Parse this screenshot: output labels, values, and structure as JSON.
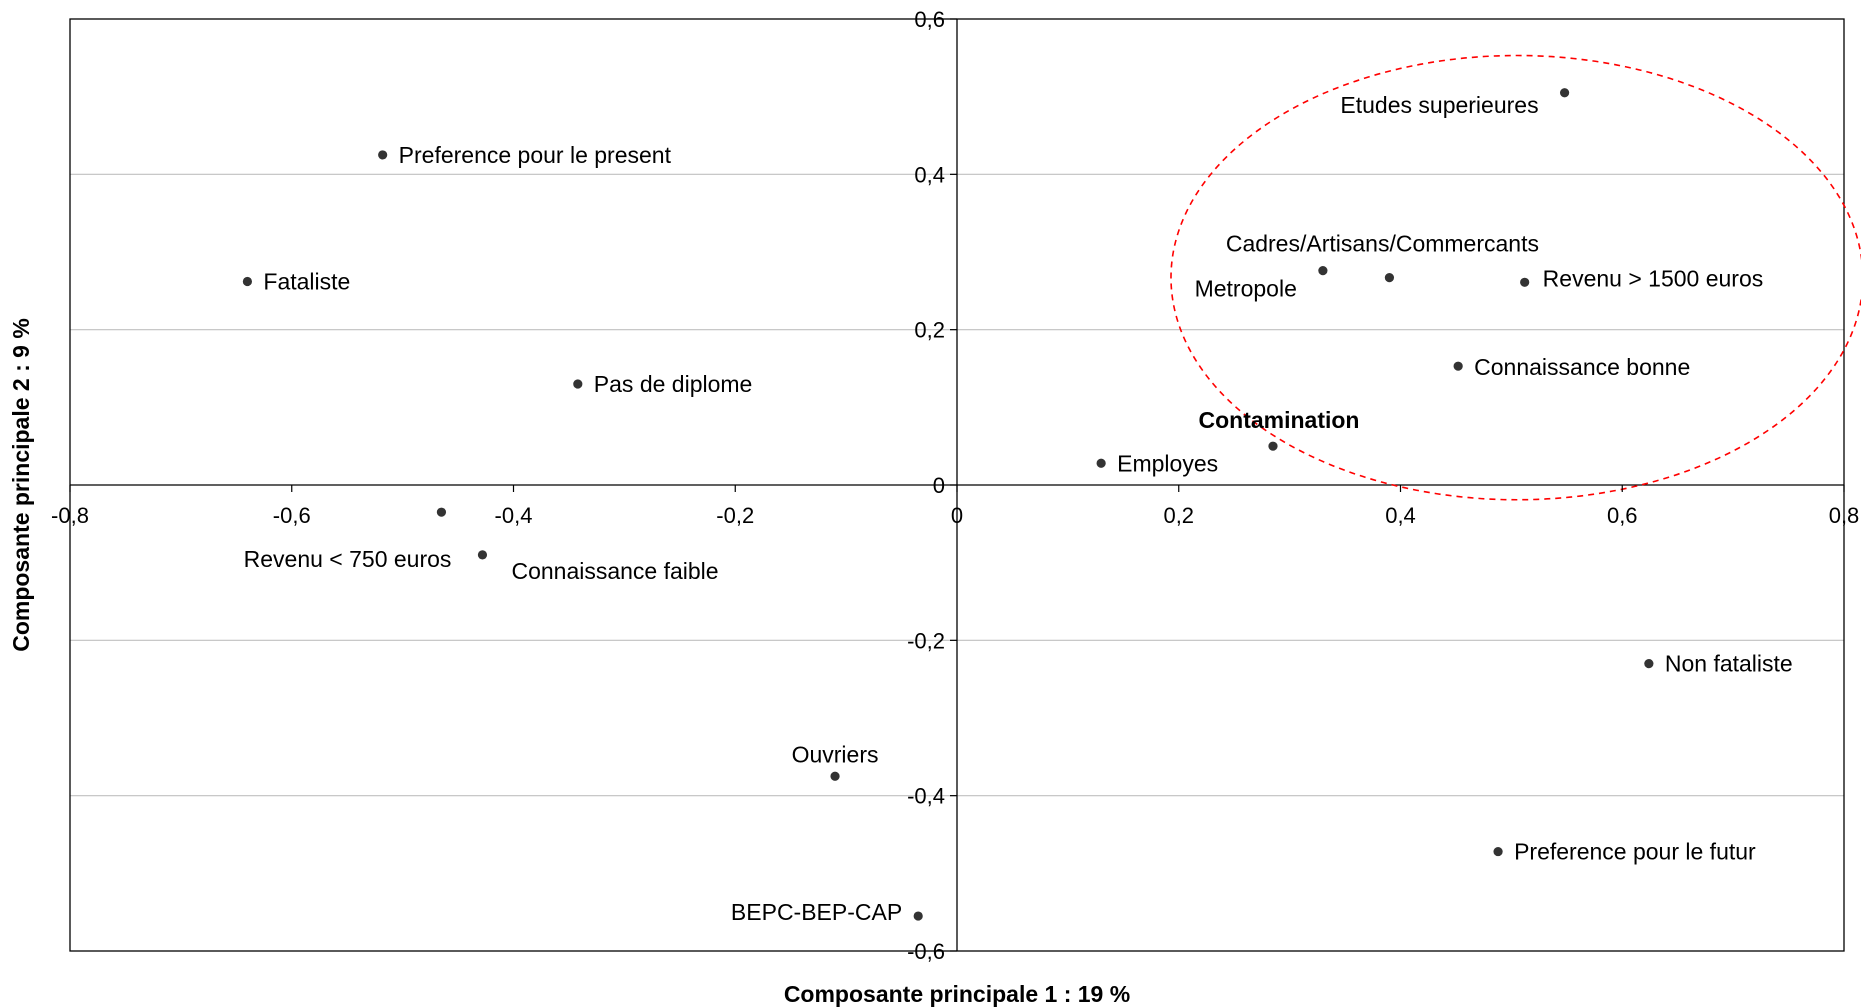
{
  "chart_data": {
    "type": "scatter",
    "xlabel": "Composante principale 1 : 19 %",
    "ylabel": "Composante principale 2 : 9 %",
    "xlim": [
      -0.8,
      0.8
    ],
    "ylim": [
      -0.6,
      0.6
    ],
    "x_ticks": [
      -0.8,
      -0.6,
      -0.4,
      -0.2,
      0,
      0.2,
      0.4,
      0.6,
      0.8
    ],
    "y_ticks": [
      -0.6,
      -0.4,
      -0.2,
      0,
      0.2,
      0.4,
      0.6
    ],
    "x_tick_labels": [
      "-0,8",
      "-0,6",
      "-0,4",
      "-0,2",
      "0",
      "0,2",
      "0,4",
      "0,6",
      "0,8"
    ],
    "y_tick_labels": [
      "-0,6",
      "-0,4",
      "-0,2",
      "0",
      "0,2",
      "0,4",
      "0,6"
    ],
    "grid": "horizontal",
    "colors": {
      "points": "#333333",
      "grid": "#c0c0c0",
      "axis": "#000000",
      "ellipse": "#ff0000"
    },
    "points": [
      {
        "label": "Preference pour le present",
        "x": -0.518,
        "y": 0.425
      },
      {
        "label": "Fataliste",
        "x": -0.64,
        "y": 0.262
      },
      {
        "label": "Pas de diplome",
        "x": -0.342,
        "y": 0.13
      },
      {
        "label": "Revenu < 750 euros",
        "x": -0.465,
        "y": -0.035
      },
      {
        "label": "Connaissance faible",
        "x": -0.428,
        "y": -0.09
      },
      {
        "label": "Ouvriers",
        "x": -0.11,
        "y": -0.375
      },
      {
        "label": "BEPC-BEP-CAP",
        "x": -0.035,
        "y": -0.555
      },
      {
        "label": "Etudes superieures",
        "x": 0.548,
        "y": 0.505
      },
      {
        "label": "Cadres/Artisans/Commercants",
        "x": 0.39,
        "y": 0.267
      },
      {
        "label": "Metropole",
        "x": 0.33,
        "y": 0.276
      },
      {
        "label": "Revenu > 1500 euros",
        "x": 0.512,
        "y": 0.261
      },
      {
        "label": "Connaissance bonne",
        "x": 0.452,
        "y": 0.153
      },
      {
        "label": "Contamination",
        "x": 0.285,
        "y": 0.05,
        "bold": true
      },
      {
        "label": "Employes",
        "x": 0.13,
        "y": 0.028
      },
      {
        "label": "Non fataliste",
        "x": 0.624,
        "y": -0.23
      },
      {
        "label": "Preference pour le futur",
        "x": 0.488,
        "y": -0.472
      }
    ],
    "ellipse": {
      "cx": 0.505,
      "cy": 0.267,
      "rx": 0.312,
      "ry": 0.286,
      "style": "dashed"
    }
  }
}
